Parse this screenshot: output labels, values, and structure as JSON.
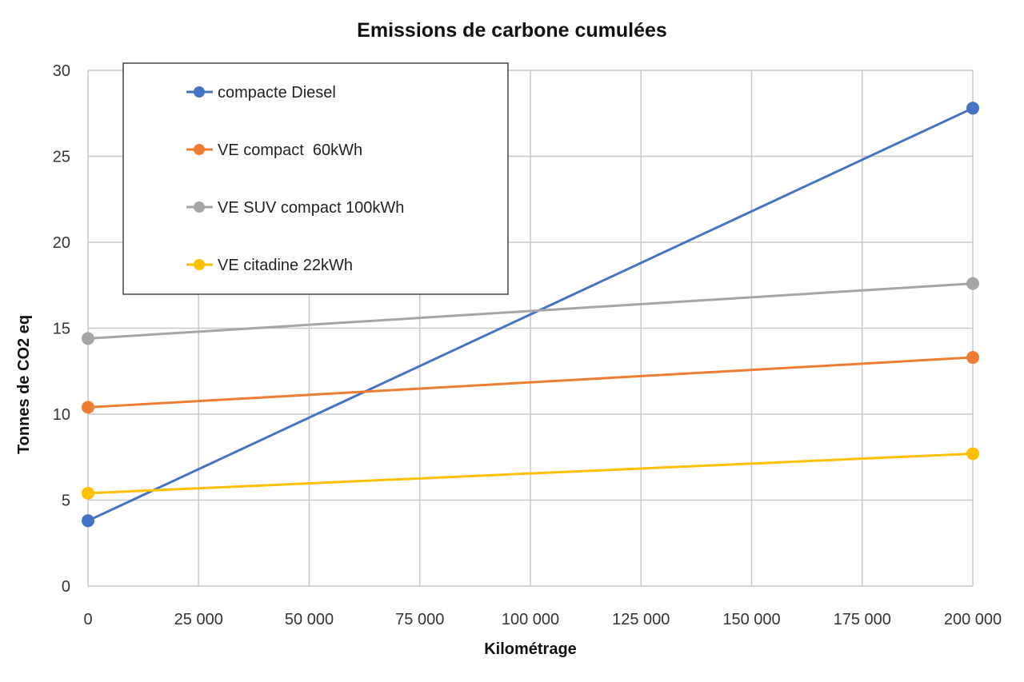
{
  "chart_data": {
    "type": "line",
    "title": "Emissions de carbone cumulées",
    "xlabel": "Kilométrage",
    "ylabel": "Tonnes de CO2 eq",
    "x_ticks": [
      "0",
      "25 000",
      "50 000",
      "75 000",
      "100 000",
      "125 000",
      "150 000",
      "175 000",
      "200 000"
    ],
    "y_ticks": [
      "0",
      "5",
      "10",
      "15",
      "20",
      "25",
      "30"
    ],
    "xlim": [
      0,
      200000
    ],
    "ylim": [
      0,
      30
    ],
    "grid": true,
    "legend_position": "top-left",
    "x": [
      0,
      200000
    ],
    "series": [
      {
        "name": "compacte Diesel",
        "color": "#4472c4",
        "values": [
          3.8,
          27.8
        ]
      },
      {
        "name": "VE compact  60kWh",
        "color": "#ed7d31",
        "values": [
          10.4,
          13.3
        ]
      },
      {
        "name": "VE SUV compact 100kWh",
        "color": "#a5a5a5",
        "values": [
          14.4,
          17.6
        ]
      },
      {
        "name": "VE citadine 22kWh",
        "color": "#ffc000",
        "values": [
          5.4,
          7.7
        ]
      }
    ]
  }
}
